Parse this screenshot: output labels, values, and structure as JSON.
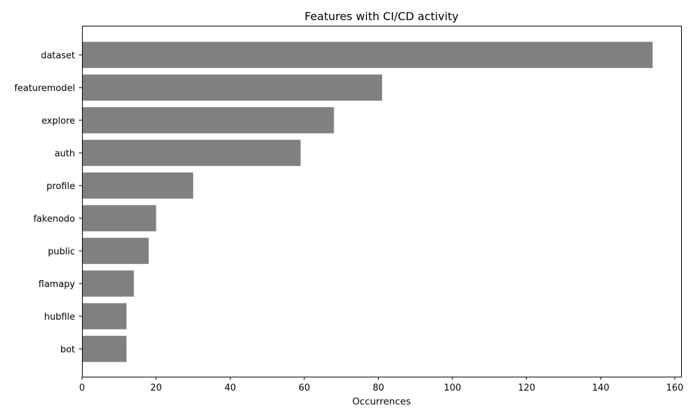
{
  "chart_data": {
    "type": "bar",
    "orientation": "horizontal",
    "title": "Features with CI/CD activity",
    "xlabel": "Occurrences",
    "ylabel": "",
    "categories": [
      "dataset",
      "featuremodel",
      "explore",
      "auth",
      "profile",
      "fakenodo",
      "public",
      "flamapy",
      "hubfile",
      "bot"
    ],
    "values": [
      154,
      81,
      68,
      59,
      30,
      20,
      18,
      14,
      12,
      12
    ],
    "xlim": [
      0,
      161.7
    ],
    "xticks": [
      0,
      20,
      40,
      60,
      80,
      100,
      120,
      140,
      160
    ],
    "bar_color": "#808080",
    "grid": false,
    "legend": "none"
  }
}
